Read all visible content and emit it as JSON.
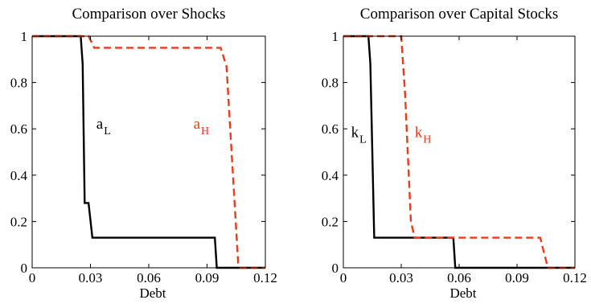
{
  "chart_data": [
    {
      "type": "line",
      "title": "Comparison over Shocks",
      "xlabel": "Debt",
      "ylabel": "",
      "xlim": [
        0,
        0.12
      ],
      "ylim": [
        0,
        1
      ],
      "xticks": [
        0,
        0.03,
        0.06,
        0.09,
        0.12
      ],
      "xtick_labels": [
        "0",
        "0.03",
        "0.06",
        "0.09",
        "0.12"
      ],
      "yticks": [
        0,
        0.2,
        0.4,
        0.6,
        0.8,
        1
      ],
      "ytick_labels": [
        "0",
        "0.2",
        "0.4",
        "0.6",
        "0.8",
        "1"
      ],
      "grid": false,
      "series": [
        {
          "name": "a_L",
          "color": "#000000",
          "style": "solid",
          "x": [
            0,
            0.025,
            0.026,
            0.027,
            0.029,
            0.031,
            0.032,
            0.09,
            0.094,
            0.095,
            0.12
          ],
          "y": [
            1,
            1,
            0.88,
            0.28,
            0.28,
            0.13,
            0.13,
            0.13,
            0.13,
            0,
            0
          ]
        },
        {
          "name": "a_H",
          "color": "#ee3a18",
          "style": "dashed",
          "x": [
            0,
            0.029,
            0.032,
            0.097,
            0.1,
            0.106,
            0.107,
            0.12
          ],
          "y": [
            1,
            1,
            0.95,
            0.95,
            0.87,
            0.02,
            0,
            0
          ]
        }
      ],
      "annotations": [
        {
          "main": "a",
          "sub": "L",
          "x": 0.033,
          "y": 0.6,
          "color": "#000000"
        },
        {
          "main": "a",
          "sub": "H",
          "x": 0.083,
          "y": 0.6,
          "color": "#ee3a18"
        }
      ]
    },
    {
      "type": "line",
      "title": "Comparison over Capital Stocks",
      "xlabel": "Debt",
      "ylabel": "",
      "xlim": [
        0,
        0.12
      ],
      "ylim": [
        0,
        1
      ],
      "xticks": [
        0,
        0.03,
        0.06,
        0.09,
        0.12
      ],
      "xtick_labels": [
        "0",
        "0.03",
        "0.06",
        "0.09",
        "0.12"
      ],
      "yticks": [
        0,
        0.2,
        0.4,
        0.6,
        0.8,
        1
      ],
      "ytick_labels": [
        "0",
        "0.2",
        "0.4",
        "0.6",
        "0.8",
        "1"
      ],
      "grid": false,
      "series": [
        {
          "name": "k_L",
          "color": "#000000",
          "style": "solid",
          "x": [
            0,
            0.013,
            0.014,
            0.016,
            0.017,
            0.057,
            0.058,
            0.12
          ],
          "y": [
            1,
            1,
            0.88,
            0.13,
            0.13,
            0.13,
            0,
            0
          ]
        },
        {
          "name": "k_H",
          "color": "#ee3a18",
          "style": "dashed",
          "x": [
            0,
            0.03,
            0.032,
            0.035,
            0.037,
            0.102,
            0.106,
            0.12
          ],
          "y": [
            1,
            1,
            0.75,
            0.2,
            0.13,
            0.13,
            0,
            0
          ]
        }
      ],
      "annotations": [
        {
          "main": "k",
          "sub": "L",
          "x": 0.004,
          "y": 0.565,
          "color": "#000000"
        },
        {
          "main": "k",
          "sub": "H",
          "x": 0.037,
          "y": 0.565,
          "color": "#ee3a18"
        }
      ]
    }
  ]
}
